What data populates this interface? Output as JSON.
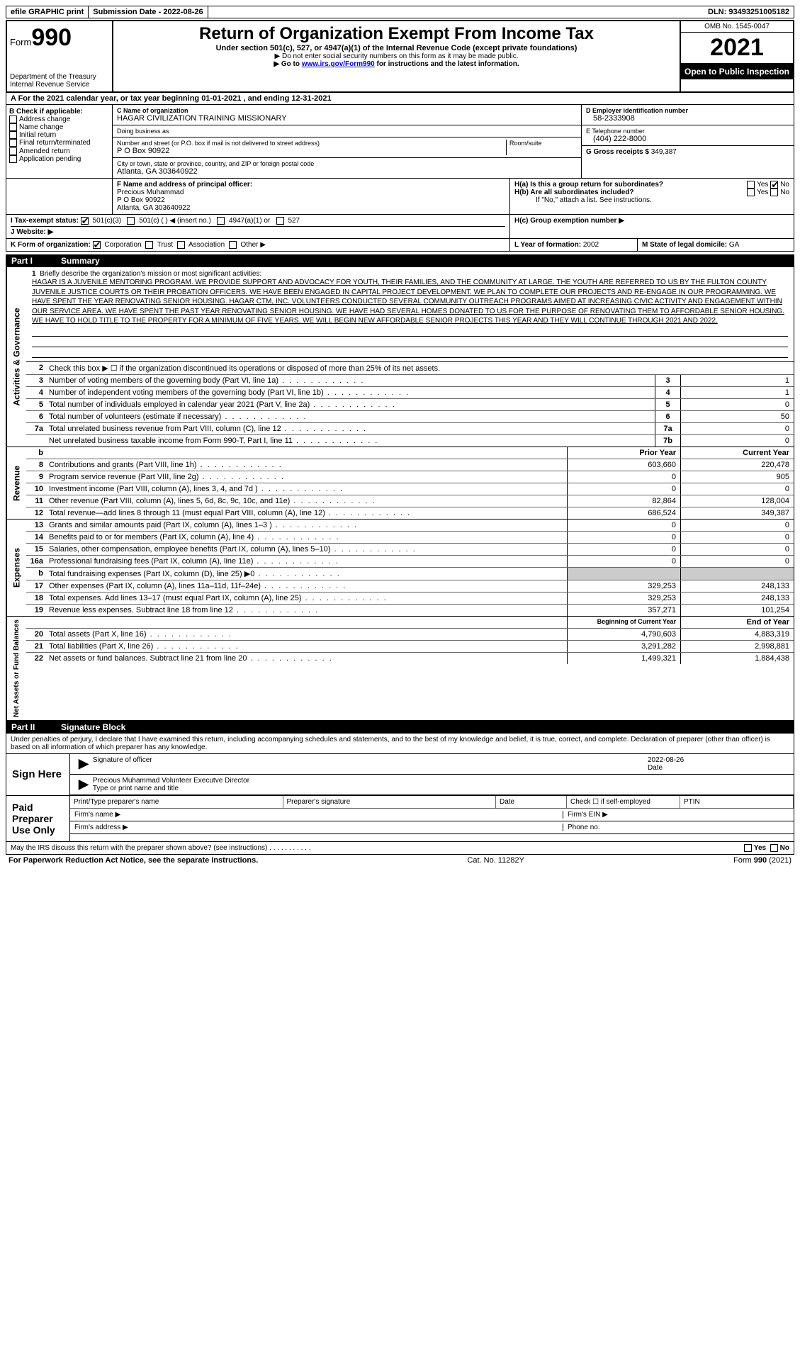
{
  "header_bar": {
    "efile": "efile GRAPHIC print",
    "submission_label": "Submission Date - ",
    "submission_date": "2022-08-26",
    "dln_label": "DLN: ",
    "dln": "93493251005182"
  },
  "form_header": {
    "form_label": "Form",
    "form_no": "990",
    "dept": "Department of the Treasury",
    "irs": "Internal Revenue Service",
    "title": "Return of Organization Exempt From Income Tax",
    "subtitle": "Under section 501(c), 527, or 4947(a)(1) of the Internal Revenue Code (except private foundations)",
    "instr1": "▶ Do not enter social security numbers on this form as it may be made public.",
    "instr2_pre": "▶ Go to ",
    "instr2_link": "www.irs.gov/Form990",
    "instr2_post": " for instructions and the latest information.",
    "omb": "OMB No. 1545-0047",
    "year": "2021",
    "inspection": "Open to Public Inspection"
  },
  "line_a": "A For the 2021 calendar year, or tax year beginning 01-01-2021   , and ending 12-31-2021",
  "box_b": {
    "label": "B Check if applicable:",
    "items": [
      "Address change",
      "Name change",
      "Initial return",
      "Final return/terminated",
      "Amended return",
      "Application pending"
    ]
  },
  "box_c": {
    "name_label": "C Name of organization",
    "name": "HAGAR CIVILIZATION TRAINING MISSIONARY",
    "dba_label": "Doing business as",
    "dba": "",
    "addr_label": "Number and street (or P.O. box if mail is not delivered to street address)",
    "room_label": "Room/suite",
    "addr": "P O Box 90922",
    "city_label": "City or town, state or province, country, and ZIP or foreign postal code",
    "city": "Atlanta, GA  303640922"
  },
  "box_d": {
    "label": "D Employer identification number",
    "val": "58-2333908"
  },
  "box_e": {
    "label": "E Telephone number",
    "val": "(404) 222-8000"
  },
  "box_g": {
    "label": "G Gross receipts $",
    "val": "349,387"
  },
  "box_f": {
    "label": "F  Name and address of principal officer:",
    "lines": [
      "Precious Muhammad",
      "P O Box 90922",
      "Atlanta, GA  303640922"
    ]
  },
  "box_h": {
    "ha": "H(a)  Is this a group return for subordinates?",
    "hb": "H(b)  Are all subordinates included?",
    "hb_note": "If \"No,\" attach a list. See instructions.",
    "hc": "H(c)  Group exemption number ▶",
    "yes": "Yes",
    "no": "No"
  },
  "box_i": {
    "label": "I  Tax-exempt status:",
    "opts": [
      "501(c)(3)",
      "501(c) (  ) ◀ (insert no.)",
      "4947(a)(1) or",
      "527"
    ]
  },
  "box_j": "J  Website: ▶",
  "box_k": {
    "label": "K Form of organization:",
    "opts": [
      "Corporation",
      "Trust",
      "Association",
      "Other ▶"
    ]
  },
  "box_l": {
    "label": "L Year of formation:",
    "val": "2002"
  },
  "box_m": {
    "label": "M State of legal domicile:",
    "val": "GA"
  },
  "part1": {
    "label": "Part I",
    "title": "Summary"
  },
  "mission": {
    "n": "1",
    "label": "Briefly describe the organization's mission or most significant activities:",
    "text": "HAGAR IS A JUVENILE MENTORING PROGRAM. WE PROVIDE SUPPORT AND ADVOCACY FOR YOUTH, THEIR FAMILIES, AND THE COMMUNITY AT LARGE. THE YOUTH ARE REFERRED TO US BY THE FULTON COUNTY JUVENILE JUSTICE COURTS OR THEIR PROBATION OFFICERS. WE HAVE BEEN ENGAGED IN CAPITAL PROJECT DEVELOPMENT. WE PLAN TO COMPLETE OUR PROJECTS AND RE-ENGAGE IN OUR PROGRAMMING. WE HAVE SPENT THE YEAR RENOVATING SENIOR HOUSING. HAGAR CTM, INC. VOLUNTEERS CONDUCTED SEVERAL COMMUNITY OUTREACH PROGRAMS AIMED AT INCREASING CIVIC ACTIVITY AND ENGAGEMENT WITHIN OUR SERVICE AREA. WE HAVE SPENT THE PAST YEAR RENOVATING SENIOR HOUSING. WE HAVE HAD SEVERAL HOMES DONATED TO US FOR THE PURPOSE OF RENOVATING THEM TO AFFORDABLE SENIOR HOUSING. WE HAVE TO HOLD TITLE TO THE PROPERTY FOR A MINIMUM OF FIVE YEARS. WE WILL BEGIN NEW AFFORDABLE SENIOR PROJECTS THIS YEAR AND THEY WILL CONTINUE THROUGH 2021 AND 2022."
  },
  "gov_rows": [
    {
      "n": "2",
      "d": "Check this box ▶ ☐ if the organization discontinued its operations or disposed of more than 25% of its net assets.",
      "box": "",
      "val": ""
    },
    {
      "n": "3",
      "d": "Number of voting members of the governing body (Part VI, line 1a)",
      "box": "3",
      "val": "1"
    },
    {
      "n": "4",
      "d": "Number of independent voting members of the governing body (Part VI, line 1b)",
      "box": "4",
      "val": "1"
    },
    {
      "n": "5",
      "d": "Total number of individuals employed in calendar year 2021 (Part V, line 2a)",
      "box": "5",
      "val": "0"
    },
    {
      "n": "6",
      "d": "Total number of volunteers (estimate if necessary)",
      "box": "6",
      "val": "50"
    },
    {
      "n": "7a",
      "d": "Total unrelated business revenue from Part VIII, column (C), line 12",
      "box": "7a",
      "val": "0"
    },
    {
      "n": "",
      "d": "Net unrelated business taxable income from Form 990-T, Part I, line 11",
      "box": "7b",
      "val": "0"
    }
  ],
  "two_col_header": {
    "py": "Prior Year",
    "cy": "Current Year"
  },
  "revenue_rows": [
    {
      "n": "8",
      "d": "Contributions and grants (Part VIII, line 1h)",
      "py": "603,660",
      "cy": "220,478"
    },
    {
      "n": "9",
      "d": "Program service revenue (Part VIII, line 2g)",
      "py": "0",
      "cy": "905"
    },
    {
      "n": "10",
      "d": "Investment income (Part VIII, column (A), lines 3, 4, and 7d )",
      "py": "0",
      "cy": "0"
    },
    {
      "n": "11",
      "d": "Other revenue (Part VIII, column (A), lines 5, 6d, 8c, 9c, 10c, and 11e)",
      "py": "82,864",
      "cy": "128,004"
    },
    {
      "n": "12",
      "d": "Total revenue—add lines 8 through 11 (must equal Part VIII, column (A), line 12)",
      "py": "686,524",
      "cy": "349,387"
    }
  ],
  "expense_rows": [
    {
      "n": "13",
      "d": "Grants and similar amounts paid (Part IX, column (A), lines 1–3 )",
      "py": "0",
      "cy": "0"
    },
    {
      "n": "14",
      "d": "Benefits paid to or for members (Part IX, column (A), line 4)",
      "py": "0",
      "cy": "0"
    },
    {
      "n": "15",
      "d": "Salaries, other compensation, employee benefits (Part IX, column (A), lines 5–10)",
      "py": "0",
      "cy": "0"
    },
    {
      "n": "16a",
      "d": "Professional fundraising fees (Part IX, column (A), line 11e)",
      "py": "0",
      "cy": "0"
    },
    {
      "n": "b",
      "d": "Total fundraising expenses (Part IX, column (D), line 25) ▶0",
      "py": "",
      "cy": "",
      "shade": true
    },
    {
      "n": "17",
      "d": "Other expenses (Part IX, column (A), lines 11a–11d, 11f–24e)",
      "py": "329,253",
      "cy": "248,133"
    },
    {
      "n": "18",
      "d": "Total expenses. Add lines 13–17 (must equal Part IX, column (A), line 25)",
      "py": "329,253",
      "cy": "248,133"
    },
    {
      "n": "19",
      "d": "Revenue less expenses. Subtract line 18 from line 12",
      "py": "357,271",
      "cy": "101,254"
    }
  ],
  "net_header": {
    "py": "Beginning of Current Year",
    "cy": "End of Year"
  },
  "net_rows": [
    {
      "n": "20",
      "d": "Total assets (Part X, line 16)",
      "py": "4,790,603",
      "cy": "4,883,319"
    },
    {
      "n": "21",
      "d": "Total liabilities (Part X, line 26)",
      "py": "3,291,282",
      "cy": "2,998,881"
    },
    {
      "n": "22",
      "d": "Net assets or fund balances. Subtract line 21 from line 20",
      "py": "1,499,321",
      "cy": "1,884,438"
    }
  ],
  "vlabels": {
    "gov": "Activities & Governance",
    "rev": "Revenue",
    "exp": "Expenses",
    "net": "Net Assets or Fund Balances"
  },
  "part2": {
    "label": "Part II",
    "title": "Signature Block"
  },
  "perjury": "Under penalties of perjury, I declare that I have examined this return, including accompanying schedules and statements, and to the best of my knowledge and belief, it is true, correct, and complete. Declaration of preparer (other than officer) is based on all information of which preparer has any knowledge.",
  "sign": {
    "here": "Sign Here",
    "sig_label": "Signature of officer",
    "date_label": "Date",
    "date": "2022-08-26",
    "name": "Precious Muhammad  Volunteer Executve Director",
    "type_label": "Type or print name and title"
  },
  "paid": {
    "label": "Paid Preparer Use Only",
    "cols": [
      "Print/Type preparer's name",
      "Preparer's signature",
      "Date",
      "Check ☐ if self-employed",
      "PTIN"
    ],
    "firm_name": "Firm's name  ▶",
    "firm_ein": "Firm's EIN ▶",
    "firm_addr": "Firm's address ▶",
    "phone": "Phone no."
  },
  "discuss": {
    "q": "May the IRS discuss this return with the preparer shown above? (see instructions)",
    "yes": "Yes",
    "no": "No"
  },
  "footer": {
    "left": "For Paperwork Reduction Act Notice, see the separate instructions.",
    "mid": "Cat. No. 11282Y",
    "right": "Form 990 (2021)"
  },
  "b_line": "b"
}
